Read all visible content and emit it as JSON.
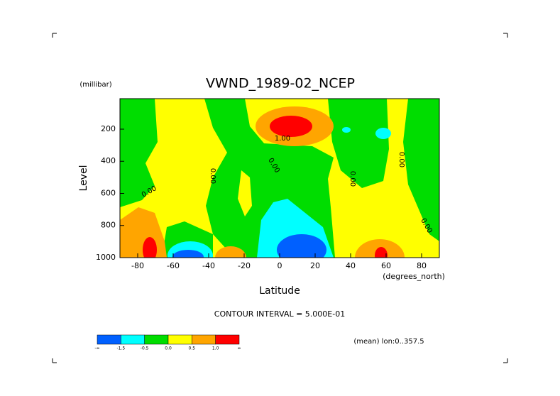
{
  "chart_data": {
    "type": "contour",
    "title": "VWND_1989-02_NCEP",
    "y_unit": "(millibar)",
    "y_label": "Level",
    "x_label": "Latitude",
    "x_unit": "(degrees_north)",
    "xlim": [
      -90,
      90
    ],
    "xticks": [
      -80,
      -60,
      -40,
      -20,
      0,
      20,
      40,
      60,
      80
    ],
    "ylim": [
      1000,
      10
    ],
    "yticks": [
      200,
      400,
      600,
      800,
      1000
    ],
    "contour_interval": "CONTOUR INTERVAL = 5.000E-01",
    "footnote": "(mean) lon:0..357.5",
    "contour_labels": [
      "1.00",
      "0.00",
      "0.00",
      "0.00",
      "0.00",
      "0.00",
      "0.00"
    ],
    "colorbar": {
      "colors": [
        "#0060ff",
        "#00ffff",
        "#00dd00",
        "#ffff00",
        "#ffa500",
        "#ff0000"
      ],
      "labels": [
        "-∞",
        "-1.5",
        "-0.5",
        "0.0",
        "0.5",
        "1.0",
        "∞"
      ]
    }
  }
}
